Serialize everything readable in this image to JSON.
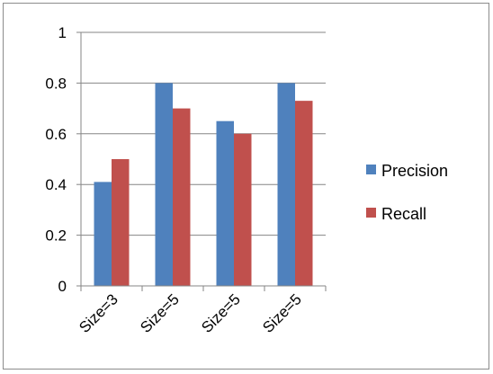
{
  "chart_data": {
    "type": "bar",
    "categories": [
      "Size=3",
      "Size=5",
      "Size=5",
      "Size=5"
    ],
    "series": [
      {
        "name": "Precision",
        "values": [
          0.41,
          0.8,
          0.65,
          0.8
        ],
        "color": "#4f81bd"
      },
      {
        "name": "Recall",
        "values": [
          0.5,
          0.7,
          0.6,
          0.73
        ],
        "color": "#c0504d"
      }
    ],
    "yticks": [
      "0",
      "0.2",
      "0.4",
      "0.6",
      "0.8",
      "1"
    ],
    "ylim": [
      0,
      1
    ],
    "grid": true,
    "legend_position": "right"
  }
}
